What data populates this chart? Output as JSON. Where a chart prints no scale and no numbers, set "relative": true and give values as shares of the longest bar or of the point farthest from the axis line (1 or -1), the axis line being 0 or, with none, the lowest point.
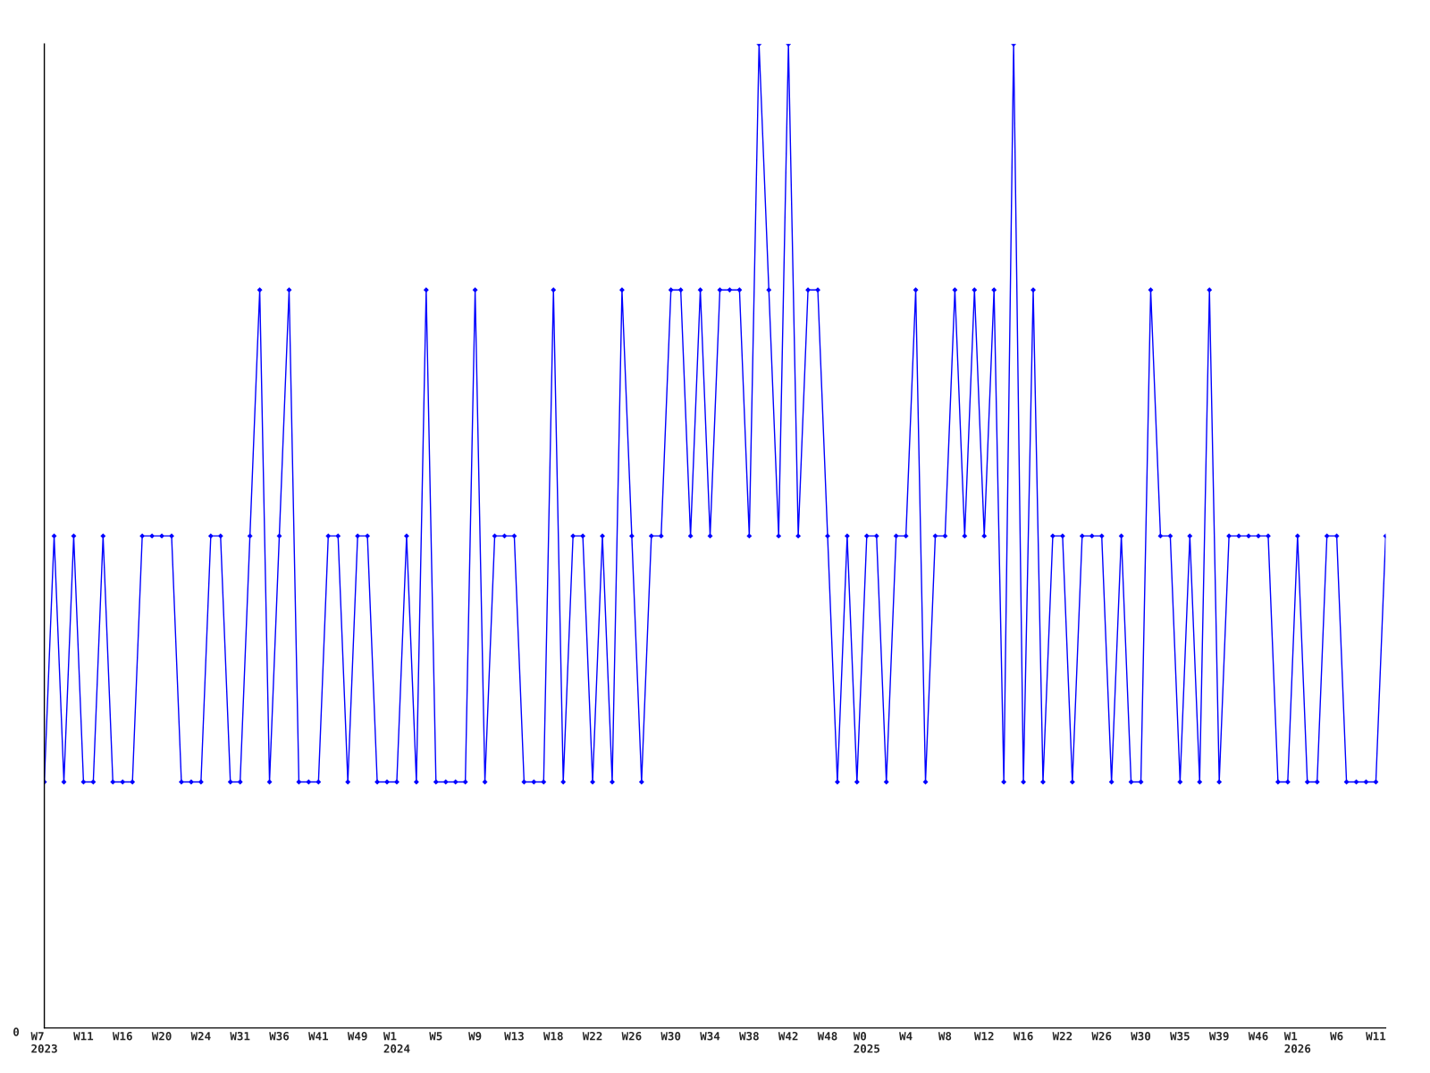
{
  "chart_data": {
    "type": "line",
    "relative": true,
    "marker": "diamond",
    "line_style": "solid",
    "grid": false,
    "legend": false,
    "annotations": [
      "0"
    ],
    "categories": [
      "W7\n2023",
      null,
      null,
      null,
      "W11",
      null,
      null,
      null,
      "W16",
      null,
      null,
      null,
      "W20",
      null,
      null,
      null,
      "W24",
      null,
      null,
      null,
      "W31",
      null,
      null,
      null,
      "W36",
      null,
      null,
      null,
      "W41",
      null,
      null,
      null,
      "W49",
      null,
      null,
      null,
      "W1\n2024",
      null,
      null,
      null,
      "W5",
      null,
      null,
      null,
      "W9",
      null,
      null,
      null,
      "W13",
      null,
      null,
      null,
      "W18",
      null,
      null,
      null,
      "W22",
      null,
      null,
      null,
      "W26",
      null,
      null,
      null,
      "W30",
      null,
      null,
      null,
      "W34",
      null,
      null,
      null,
      "W38",
      null,
      null,
      null,
      "W42",
      null,
      null,
      null,
      "W48",
      null,
      null,
      null,
      "W0\n2025",
      null,
      null,
      null,
      "W4",
      null,
      null,
      null,
      "W8",
      null,
      null,
      null,
      "W12",
      null,
      null,
      null,
      "W16",
      null,
      null,
      null,
      "W22",
      null,
      null,
      null,
      "W26",
      null,
      null,
      null,
      "W30",
      null,
      null,
      null,
      "W35",
      null,
      null,
      null,
      "W39",
      null,
      null,
      null,
      "W46",
      null,
      null,
      null,
      "W1\n2026",
      null,
      null,
      null,
      "W6",
      null,
      null,
      null,
      "W11",
      null
    ],
    "series": [
      {
        "color": "#0000ff",
        "values": [
          0.25,
          0.5,
          0.25,
          0.5,
          0.25,
          0.25,
          0.5,
          0.25,
          0.25,
          0.25,
          0.5,
          0.5,
          0.5,
          0.5,
          0.25,
          0.25,
          0.25,
          0.5,
          0.5,
          0.25,
          0.25,
          0.5,
          0.75,
          0.25,
          0.5,
          0.75,
          0.25,
          0.25,
          0.25,
          0.5,
          0.5,
          0.25,
          0.5,
          0.5,
          0.25,
          0.25,
          0.25,
          0.5,
          0.25,
          0.75,
          0.25,
          0.25,
          0.25,
          0.25,
          0.75,
          0.25,
          0.5,
          0.5,
          0.5,
          0.25,
          0.25,
          0.25,
          0.75,
          0.25,
          0.5,
          0.5,
          0.25,
          0.5,
          0.25,
          0.75,
          0.5,
          0.25,
          0.5,
          0.5,
          0.75,
          0.75,
          0.5,
          0.75,
          0.5,
          0.75,
          0.75,
          0.75,
          0.5,
          1,
          0.75,
          0.5,
          1,
          0.5,
          0.75,
          0.75,
          0.5,
          0.25,
          0.5,
          0.25,
          0.5,
          0.5,
          0.25,
          0.5,
          0.5,
          0.75,
          0.25,
          0.5,
          0.5,
          0.75,
          0.5,
          0.75,
          0.5,
          0.75,
          0.25,
          1,
          0.25,
          0.75,
          0.25,
          0.5,
          0.5,
          0.25,
          0.5,
          0.5,
          0.5,
          0.25,
          0.5,
          0.25,
          0.25,
          0.75,
          0.5,
          0.5,
          0.25,
          0.5,
          0.25,
          0.75,
          0.25,
          0.5,
          0.5,
          0.5,
          0.5,
          0.5,
          0.25,
          0.25,
          0.5,
          0.25,
          0.25,
          0.5,
          0.5,
          0.25,
          0.25,
          0.25,
          0.25,
          0.5
        ]
      }
    ]
  }
}
